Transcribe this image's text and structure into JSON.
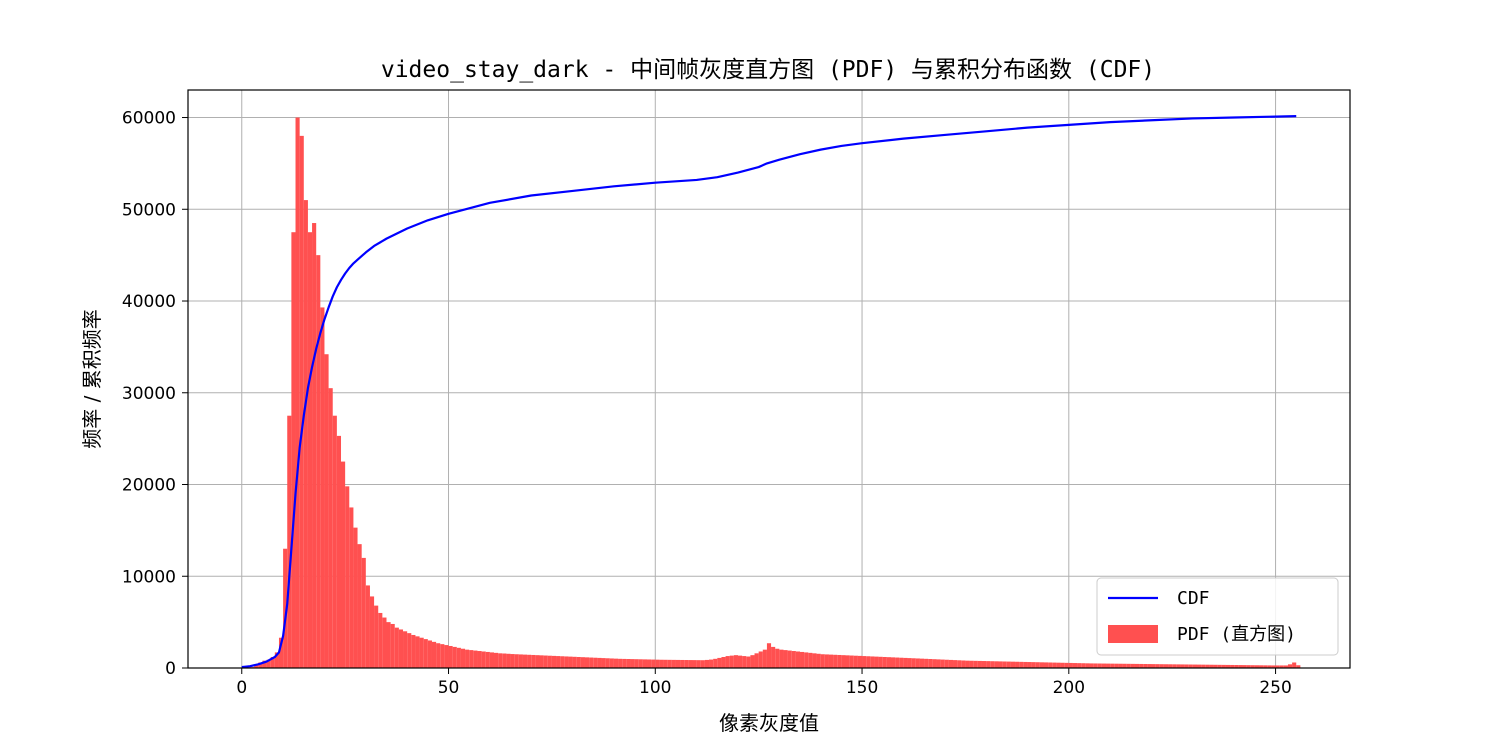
{
  "chart_data": {
    "type": "bar",
    "title": "video_stay_dark - 中间帧灰度直方图 (PDF) 与累积分布函数 (CDF)",
    "xlabel": "像素灰度值",
    "ylabel": "频率 / 累积频率",
    "xlim": [
      -13,
      268
    ],
    "ylim": [
      0,
      63000
    ],
    "x_ticks": [
      0,
      50,
      100,
      150,
      200,
      250
    ],
    "y_ticks": [
      0,
      10000,
      20000,
      30000,
      40000,
      50000,
      60000
    ],
    "grid": true,
    "legend_position": "lower right",
    "series": [
      {
        "name": "CDF",
        "kind": "line",
        "color": "#0000ff",
        "x": [
          0,
          2,
          4,
          6,
          8,
          9,
          10,
          11,
          12,
          13,
          14,
          15,
          16,
          17,
          18,
          19,
          20,
          21,
          22,
          23,
          24,
          25,
          26,
          27,
          28,
          30,
          32,
          35,
          40,
          45,
          50,
          60,
          70,
          80,
          90,
          100,
          110,
          115,
          120,
          125,
          127,
          130,
          135,
          140,
          145,
          150,
          160,
          170,
          180,
          190,
          200,
          210,
          220,
          230,
          240,
          250,
          255
        ],
        "y": [
          100,
          200,
          400,
          700,
          1200,
          1700,
          3500,
          7000,
          13000,
          19000,
          24000,
          27500,
          30500,
          32800,
          34800,
          36500,
          38000,
          39300,
          40500,
          41500,
          42300,
          43000,
          43600,
          44100,
          44500,
          45300,
          46000,
          46800,
          47900,
          48800,
          49500,
          50700,
          51500,
          52000,
          52500,
          52900,
          53200,
          53500,
          54000,
          54600,
          55000,
          55400,
          56000,
          56500,
          56900,
          57200,
          57700,
          58100,
          58500,
          58900,
          59200,
          59500,
          59700,
          59900,
          60000,
          60100,
          60150
        ]
      },
      {
        "name": "PDF (直方图)",
        "kind": "bar",
        "color": "#ff5050",
        "x": [
          0,
          1,
          2,
          3,
          4,
          5,
          6,
          7,
          8,
          9,
          10,
          11,
          12,
          13,
          14,
          15,
          16,
          17,
          18,
          19,
          20,
          21,
          22,
          23,
          24,
          25,
          26,
          27,
          28,
          29,
          30,
          31,
          32,
          33,
          34,
          35,
          36,
          37,
          38,
          39,
          40,
          41,
          42,
          43,
          44,
          45,
          46,
          47,
          48,
          49,
          50,
          51,
          52,
          53,
          54,
          55,
          56,
          57,
          58,
          59,
          60,
          61,
          62,
          63,
          64,
          65,
          66,
          67,
          68,
          69,
          70,
          71,
          72,
          73,
          74,
          75,
          76,
          77,
          78,
          79,
          80,
          81,
          82,
          83,
          84,
          85,
          86,
          87,
          88,
          89,
          90,
          91,
          92,
          93,
          94,
          95,
          96,
          97,
          98,
          99,
          100,
          101,
          102,
          103,
          104,
          105,
          106,
          107,
          108,
          109,
          110,
          111,
          112,
          113,
          114,
          115,
          116,
          117,
          118,
          119,
          120,
          121,
          122,
          123,
          124,
          125,
          126,
          127,
          128,
          129,
          130,
          131,
          132,
          133,
          134,
          135,
          136,
          137,
          138,
          139,
          140,
          141,
          142,
          143,
          144,
          145,
          146,
          147,
          148,
          149,
          150,
          151,
          152,
          153,
          154,
          155,
          156,
          157,
          158,
          159,
          160,
          161,
          162,
          163,
          164,
          165,
          166,
          167,
          168,
          169,
          170,
          171,
          172,
          173,
          174,
          175,
          176,
          177,
          178,
          179,
          180,
          181,
          182,
          183,
          184,
          185,
          186,
          187,
          188,
          189,
          190,
          191,
          192,
          193,
          194,
          195,
          196,
          197,
          198,
          199,
          200,
          201,
          202,
          203,
          204,
          205,
          206,
          207,
          208,
          209,
          210,
          211,
          212,
          213,
          214,
          215,
          216,
          217,
          218,
          219,
          220,
          221,
          222,
          223,
          224,
          225,
          226,
          227,
          228,
          229,
          230,
          231,
          232,
          233,
          234,
          235,
          236,
          237,
          238,
          239,
          240,
          241,
          242,
          243,
          244,
          245,
          246,
          247,
          248,
          249,
          250,
          251,
          252,
          253,
          254,
          255
        ],
        "values": [
          0,
          80,
          100,
          300,
          600,
          800,
          900,
          1200,
          1700,
          3300,
          13000,
          27500,
          47500,
          60000,
          58000,
          51000,
          47500,
          48500,
          45000,
          39300,
          34200,
          30500,
          27500,
          25300,
          22500,
          19800,
          17500,
          15300,
          13500,
          12000,
          9000,
          7800,
          6800,
          6000,
          5500,
          5000,
          4800,
          4400,
          4200,
          4000,
          3800,
          3600,
          3450,
          3300,
          3150,
          3000,
          2850,
          2700,
          2600,
          2500,
          2400,
          2300,
          2200,
          2100,
          2000,
          1950,
          1900,
          1850,
          1800,
          1750,
          1700,
          1650,
          1600,
          1580,
          1550,
          1520,
          1500,
          1480,
          1460,
          1440,
          1420,
          1400,
          1380,
          1360,
          1340,
          1320,
          1300,
          1280,
          1260,
          1240,
          1220,
          1200,
          1180,
          1160,
          1140,
          1120,
          1100,
          1080,
          1060,
          1040,
          1020,
          1000,
          990,
          980,
          970,
          960,
          950,
          940,
          930,
          920,
          910,
          900,
          895,
          890,
          885,
          880,
          875,
          870,
          865,
          860,
          855,
          850,
          880,
          920,
          1000,
          1100,
          1200,
          1300,
          1350,
          1400,
          1350,
          1300,
          1250,
          1400,
          1600,
          1800,
          2000,
          2700,
          2300,
          2100,
          2000,
          1950,
          1900,
          1850,
          1800,
          1750,
          1700,
          1650,
          1600,
          1550,
          1500,
          1480,
          1460,
          1440,
          1420,
          1400,
          1380,
          1360,
          1340,
          1320,
          1300,
          1280,
          1260,
          1240,
          1220,
          1200,
          1180,
          1160,
          1140,
          1120,
          1100,
          1080,
          1060,
          1040,
          1020,
          1000,
          980,
          960,
          940,
          920,
          900,
          880,
          860,
          840,
          820,
          800,
          790,
          780,
          770,
          760,
          750,
          740,
          730,
          720,
          710,
          700,
          690,
          680,
          670,
          660,
          650,
          640,
          630,
          620,
          610,
          600,
          590,
          580,
          570,
          560,
          550,
          540,
          530,
          520,
          510,
          500,
          495,
          490,
          485,
          480,
          475,
          470,
          465,
          460,
          455,
          450,
          445,
          440,
          435,
          430,
          425,
          420,
          415,
          410,
          405,
          400,
          395,
          390,
          385,
          380,
          375,
          370,
          365,
          360,
          355,
          350,
          345,
          340,
          335,
          330,
          325,
          320,
          315,
          310,
          305,
          300,
          295,
          290,
          285,
          280,
          280,
          280,
          280,
          400,
          600,
          300
        ]
      }
    ]
  }
}
